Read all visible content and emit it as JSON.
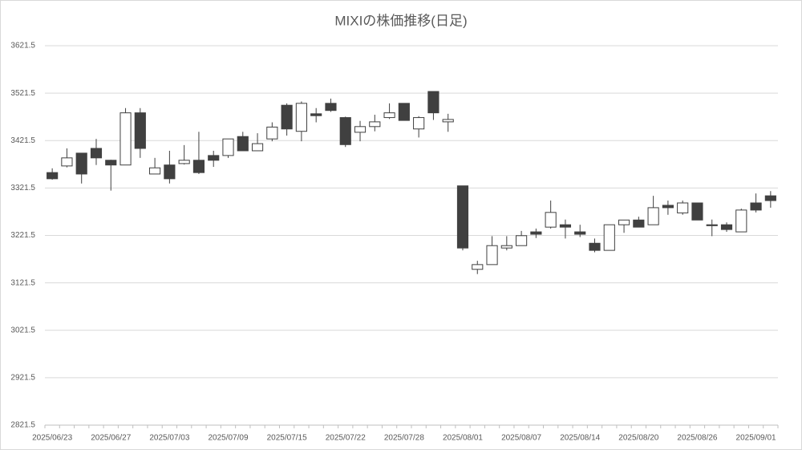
{
  "chart_data": {
    "type": "candlestick",
    "title": "MIXIの株価推移(日足)",
    "categories": [
      "2025/06/23",
      null,
      null,
      null,
      "2025/06/27",
      null,
      null,
      null,
      "2025/07/03",
      null,
      null,
      null,
      "2025/07/09",
      null,
      null,
      null,
      "2025/07/15",
      null,
      null,
      null,
      "2025/07/22",
      null,
      null,
      null,
      "2025/07/28",
      null,
      null,
      null,
      "2025/08/01",
      null,
      null,
      null,
      "2025/08/07",
      null,
      null,
      null,
      "2025/08/14",
      null,
      null,
      null,
      "2025/08/20",
      null,
      null,
      null,
      "2025/08/26",
      null,
      null,
      null,
      "2025/09/01",
      null
    ],
    "open": [
      3354,
      3368,
      3395,
      3405,
      3380,
      3370,
      3480,
      3351,
      3370,
      3373,
      3380,
      3390,
      3390,
      3430,
      3400,
      3425,
      3496,
      3441,
      3478,
      3500,
      3470,
      3439,
      3451,
      3470,
      3500,
      3446,
      3525,
      3461,
      3326,
      3150,
      3160,
      3195,
      3200,
      3229,
      3239,
      3244,
      3229,
      3205,
      3190,
      3244,
      3254,
      3244,
      3285,
      3269,
      3290,
      3244,
      3244,
      3229,
      3290,
      3305
    ],
    "high": [
      3363,
      3405,
      3395,
      3425,
      3381,
      3490,
      3490,
      3385,
      3400,
      3412,
      3440,
      3400,
      3425,
      3440,
      3437,
      3460,
      3500,
      3504,
      3490,
      3510,
      3472,
      3463,
      3476,
      3500,
      3500,
      3473,
      3525,
      3478,
      3326,
      3168,
      3220,
      3220,
      3231,
      3236,
      3295,
      3255,
      3244,
      3215,
      3244,
      3254,
      3261,
      3305,
      3295,
      3295,
      3290,
      3255,
      3249,
      3278,
      3310,
      3315
    ],
    "low": [
      3339,
      3365,
      3331,
      3370,
      3316,
      3370,
      3385,
      3351,
      3331,
      3371,
      3351,
      3366,
      3385,
      3400,
      3400,
      3420,
      3432,
      3420,
      3460,
      3482,
      3408,
      3420,
      3441,
      3467,
      3464,
      3428,
      3465,
      3440,
      3190,
      3140,
      3160,
      3190,
      3200,
      3216,
      3236,
      3215,
      3218,
      3186,
      3190,
      3227,
      3239,
      3244,
      3265,
      3265,
      3254,
      3220,
      3229,
      3229,
      3270,
      3280
    ],
    "close": [
      3341,
      3385,
      3351,
      3385,
      3370,
      3480,
      3405,
      3364,
      3341,
      3380,
      3354,
      3380,
      3425,
      3400,
      3415,
      3450,
      3446,
      3500,
      3474,
      3485,
      3413,
      3451,
      3461,
      3480,
      3464,
      3470,
      3480,
      3466,
      3195,
      3160,
      3200,
      3200,
      3221,
      3224,
      3270,
      3239,
      3224,
      3190,
      3244,
      3254,
      3239,
      3280,
      3280,
      3290,
      3254,
      3242,
      3234,
      3275,
      3275,
      3295
    ],
    "up_color": "#ffffff",
    "down_color": "#404040",
    "line_color": "#404040",
    "ylim": [
      2821.5,
      3621.5
    ],
    "yticks": [
      2821.5,
      2921.5,
      3021.5,
      3121.5,
      3221.5,
      3321.5,
      3421.5,
      3521.5,
      3621.5
    ],
    "grid": true
  }
}
